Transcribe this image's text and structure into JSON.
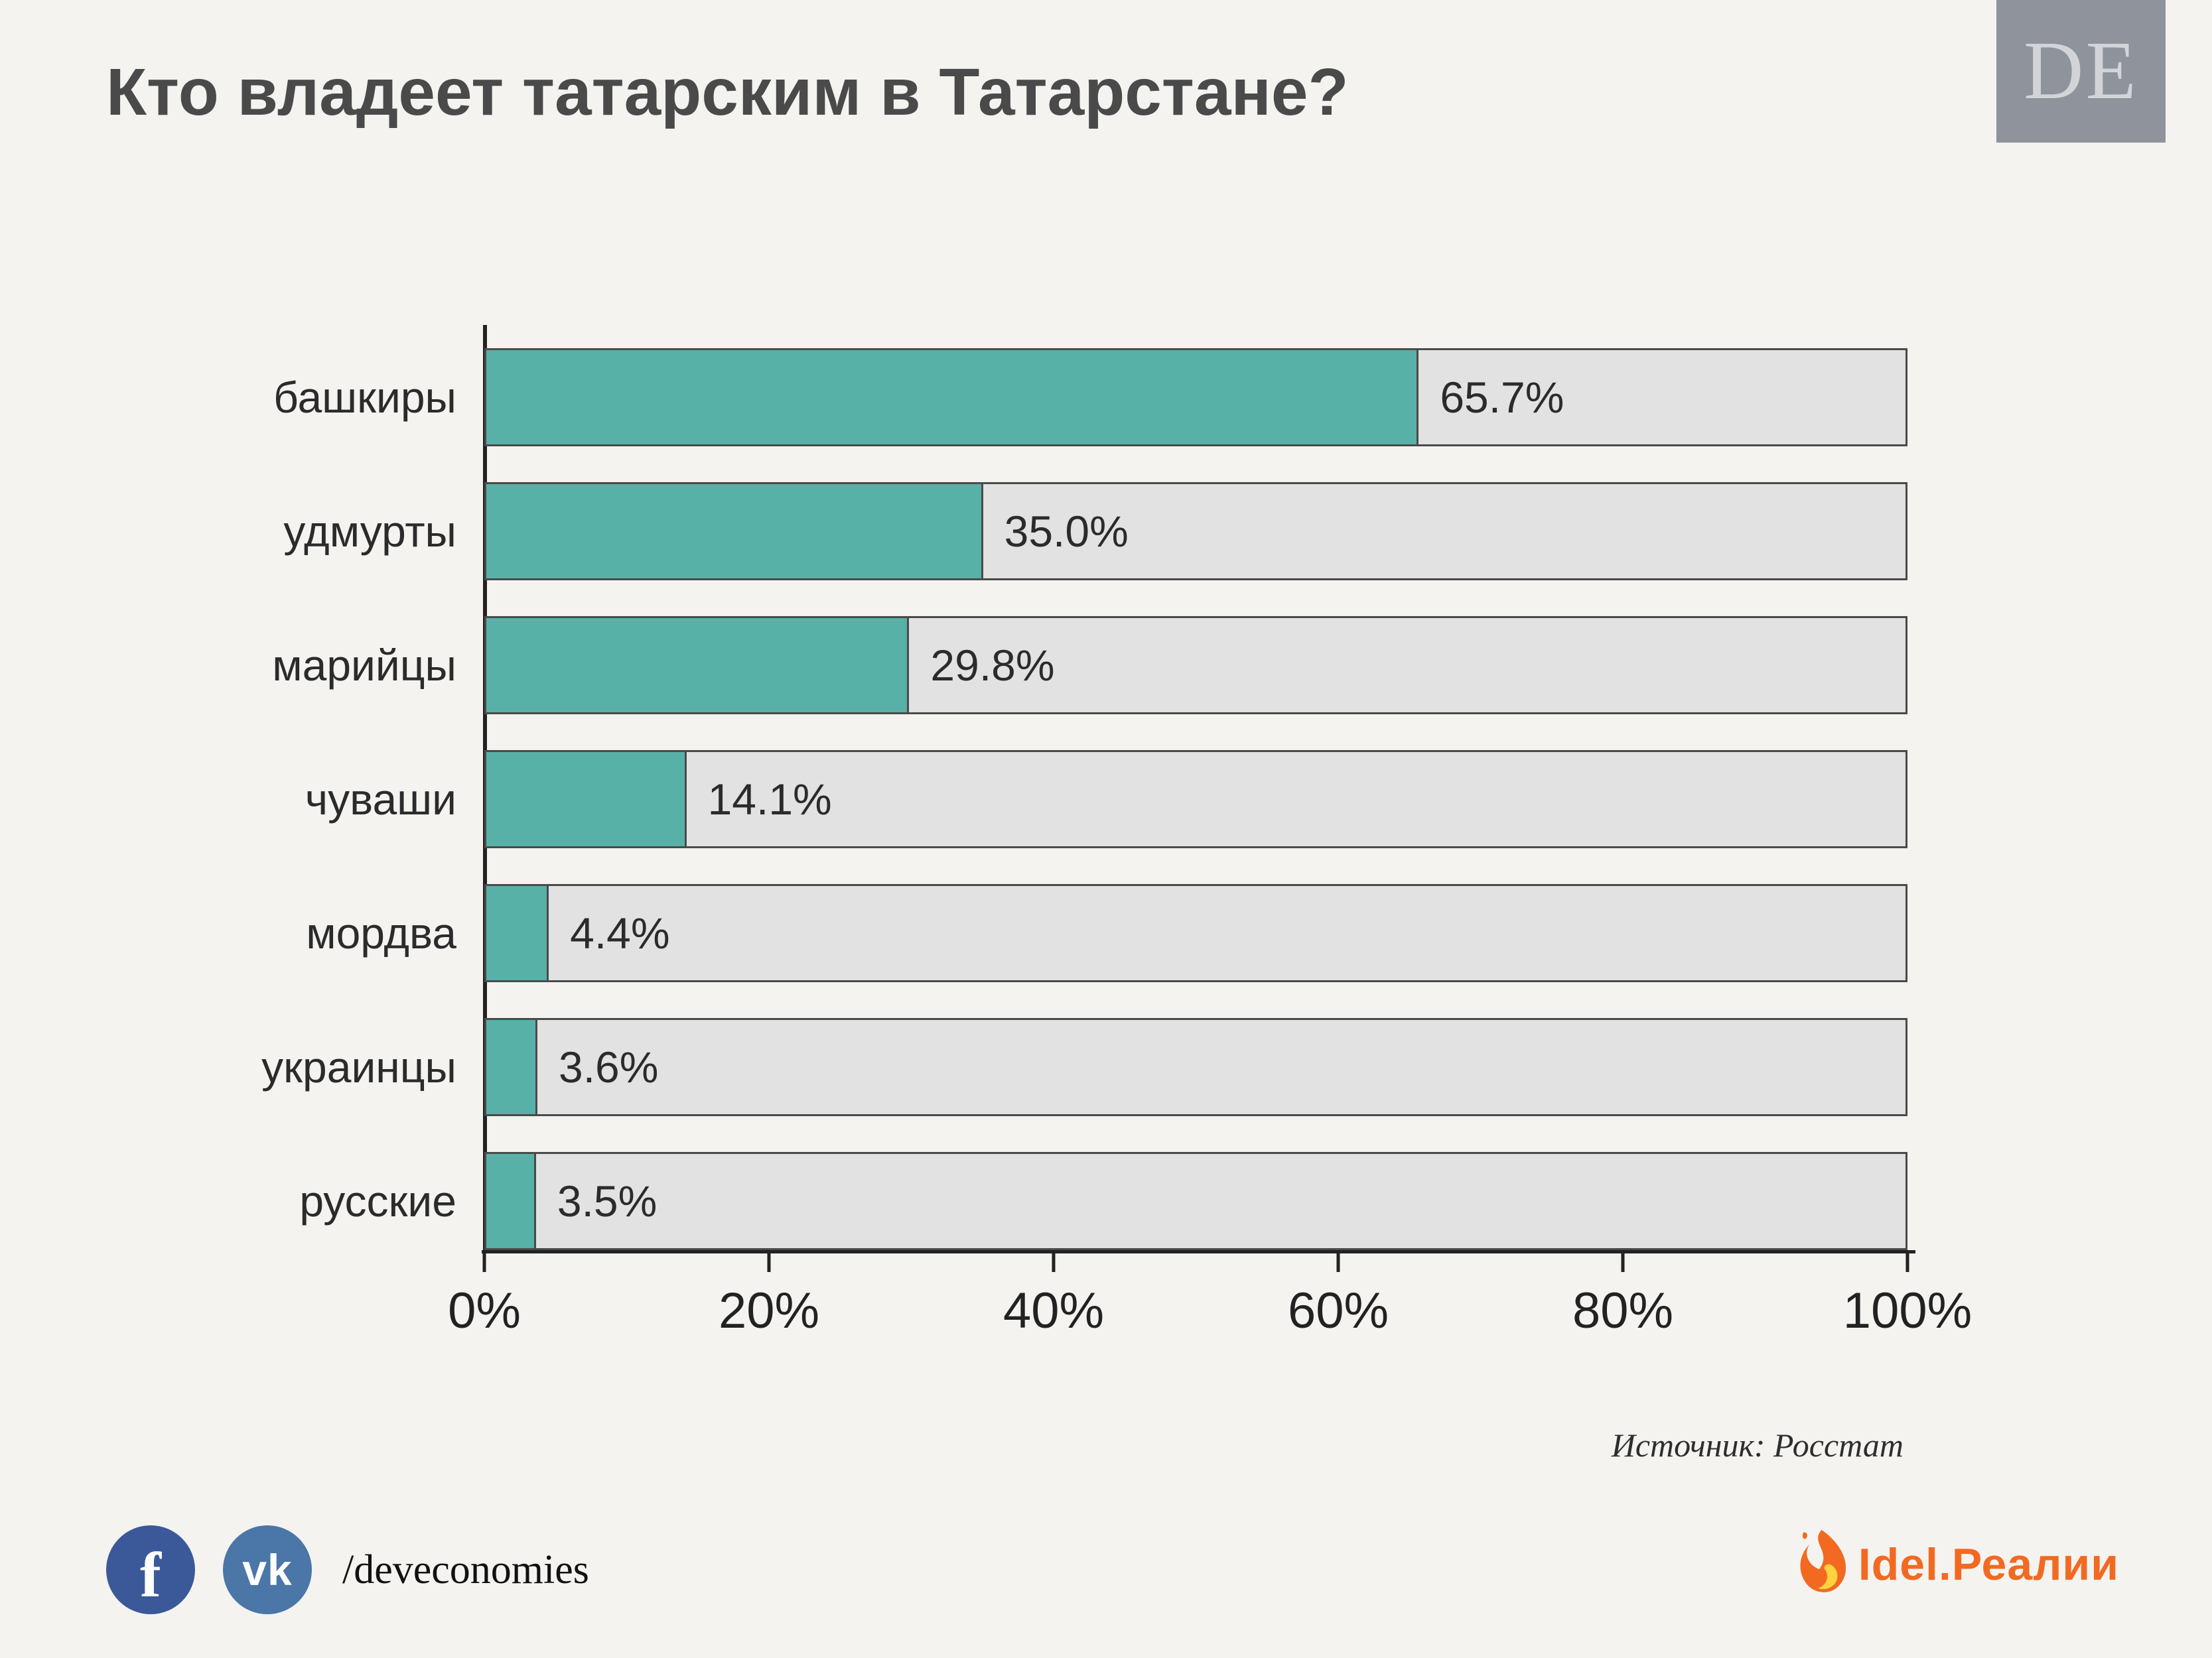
{
  "page": {
    "title": "Кто владеет татарским в Татарстане?",
    "logo_text": "DE",
    "source": "Источник: Росстат",
    "footer": {
      "facebook_label": "f",
      "vk_label": "vk",
      "social_handle": "/deveconomies",
      "brand": "Idel.Реалии"
    }
  },
  "chart_data": {
    "type": "bar",
    "orientation": "horizontal",
    "title": "Кто владеет татарским в Татарстане?",
    "categories": [
      "башкиры",
      "удмурты",
      "марийцы",
      "чуваши",
      "мордва",
      "украинцы",
      "русские"
    ],
    "values": [
      65.7,
      35.0,
      29.8,
      14.1,
      4.4,
      3.6,
      3.5
    ],
    "value_labels": [
      "65.7%",
      "35.0%",
      "29.8%",
      "14.1%",
      "4.4%",
      "3.6%",
      "3.5%"
    ],
    "xlim": [
      0,
      100
    ],
    "x_ticks": [
      "0%",
      "20%",
      "40%",
      "60%",
      "80%",
      "100%"
    ],
    "x_tick_values": [
      0,
      20,
      40,
      60,
      80,
      100
    ],
    "grid": false,
    "legend": "none",
    "bar_color": "#58b1a7",
    "bar_bg_color": "#e2e2e2",
    "source": "Источник: Росстат"
  },
  "colors": {
    "background": "#f4f3f0",
    "title": "#4a4a4a",
    "accent_teal": "#58b1a7",
    "track_gray": "#e2e2e2",
    "logo_bg": "#8e939c",
    "facebook_blue": "#3b5998",
    "vk_blue": "#4a76a8",
    "brand_orange": "#f26a21"
  }
}
